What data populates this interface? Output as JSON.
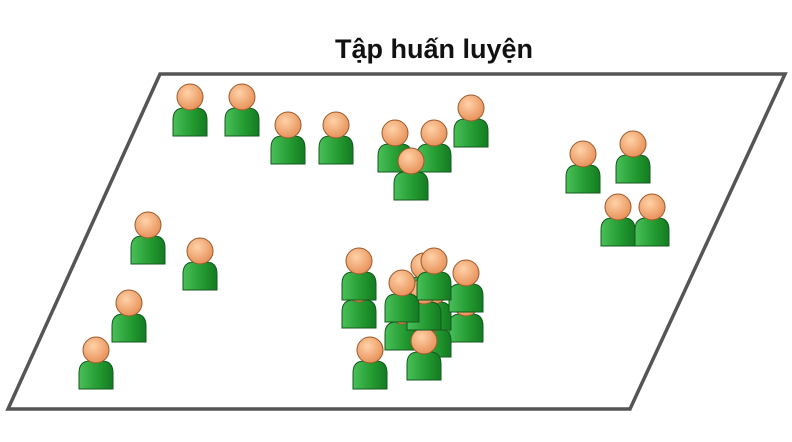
{
  "title": "Tập huấn luyện",
  "colors": {
    "head_fill": "#F2A46A",
    "head_stroke": "#9A5A2C",
    "body_fill": "#27A43A",
    "body_stroke": "#135A1F",
    "plane_stroke": "#555555"
  },
  "figure_icon": "person-icon",
  "figure_count": 29
}
